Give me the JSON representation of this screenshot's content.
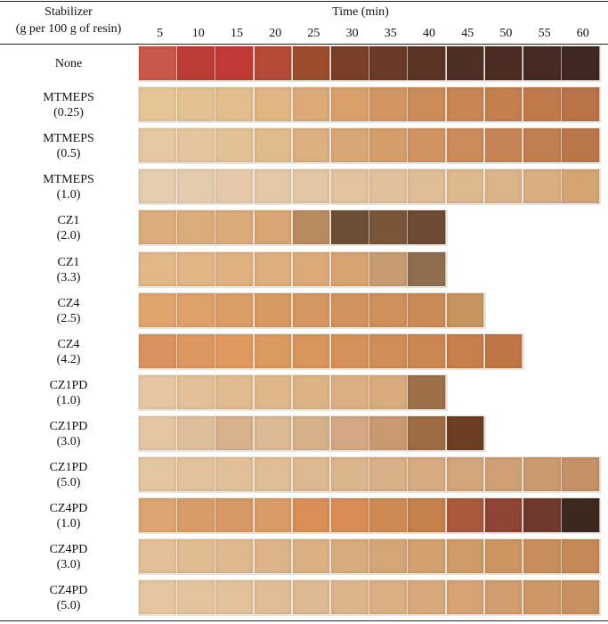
{
  "table": {
    "header": {
      "stabilizer_line1": "Stabilizer",
      "stabilizer_line2": "(g per 100 g of resin)",
      "time_label": "Time (min)",
      "times": [
        "5",
        "10",
        "15",
        "20",
        "25",
        "30",
        "35",
        "40",
        "45",
        "50",
        "55",
        "60"
      ]
    },
    "rows": [
      {
        "name": "None",
        "dose": "",
        "colors": [
          "#c9584a",
          "#bc3d36",
          "#c23a37",
          "#b44a37",
          "#9c4d2e",
          "#7a3f27",
          "#6b3a28",
          "#5c3426",
          "#4e2f25",
          "#4a2c23",
          "#462a23",
          "#3f2822"
        ]
      },
      {
        "name": "MTMEPS",
        "dose": "(0.25)",
        "colors": [
          "#e6c597",
          "#e4c193",
          "#e3bd8c",
          "#e0b682",
          "#dda977",
          "#d9a06c",
          "#d39662",
          "#cc8c58",
          "#c98553",
          "#c57f4d",
          "#c07a4a",
          "#b97347"
        ]
      },
      {
        "name": "MTMEPS",
        "dose": "(0.5)",
        "colors": [
          "#e6c8a2",
          "#e5c59d",
          "#e3c197",
          "#e0bb8d",
          "#dcb081",
          "#d8a776",
          "#d49e6b",
          "#d09463",
          "#cb8b5b",
          "#c68456",
          "#c17e51",
          "#ba764b"
        ]
      },
      {
        "name": "MTMEPS",
        "dose": "(1.0)",
        "colors": [
          "#e6cdb0",
          "#e5cbad",
          "#e5c9aa",
          "#e4c8a7",
          "#e3c6a4",
          "#e2c4a0",
          "#e1c19c",
          "#dfbd96",
          "#ddb98f",
          "#dbb48a",
          "#d9ae82",
          "#d4a573"
        ]
      },
      {
        "name": "CZ1",
        "dose": "(2.0)",
        "colors": [
          "#ddae7d",
          "#dcad7c",
          "#dbab7a",
          "#d8a675",
          "#b98b60",
          "#6e4e35",
          "#7b5538",
          "#6f4b33"
        ]
      },
      {
        "name": "CZ1",
        "dose": "(3.3)",
        "colors": [
          "#e3b888",
          "#e2b585",
          "#e0b282",
          "#deaf7e",
          "#dcaa79",
          "#d7a471",
          "#c79c73",
          "#8f6e50"
        ]
      },
      {
        "name": "CZ4",
        "dose": "(2.5)",
        "colors": [
          "#dfa56d",
          "#dea16a",
          "#dc9e67",
          "#d89a63",
          "#d59761",
          "#d2945e",
          "#cf905b",
          "#cb8b57",
          "#c7955f"
        ]
      },
      {
        "name": "CZ4",
        "dose": "(4.2)",
        "colors": [
          "#da9360",
          "#dd9761",
          "#e09a5f",
          "#db9a60",
          "#d8965d",
          "#d4925a",
          "#d08d57",
          "#cb8752",
          "#c77f4b",
          "#bf7646"
        ]
      },
      {
        "name": "CZ1PD",
        "dose": "(1.0)",
        "colors": [
          "#e6c7a2",
          "#e3c098",
          "#e1bb90",
          "#dfb78b",
          "#ddb386",
          "#dcb084",
          "#d9ab7e",
          "#9d7049"
        ]
      },
      {
        "name": "CZ1PD",
        "dose": "(3.0)",
        "colors": [
          "#e4c6a3",
          "#dfbf9b",
          "#d8b18d",
          "#dcba94",
          "#d8b18b",
          "#d3a882",
          "#c99a71",
          "#9e6c45",
          "#6c3f24"
        ]
      },
      {
        "name": "CZ1PD",
        "dose": "(5.0)",
        "colors": [
          "#e4c6a0",
          "#e2c39c",
          "#e1c099",
          "#dfbd95",
          "#ddb991",
          "#dbb58c",
          "#d9b087",
          "#d6ab81",
          "#d3a67b",
          "#cfa075",
          "#cb9a6f",
          "#c59268"
        ]
      },
      {
        "name": "CZ4PD",
        "dose": "(1.0)",
        "colors": [
          "#dca572",
          "#d89c69",
          "#d79966",
          "#d99c66",
          "#d98f56",
          "#d88d55",
          "#cf8a53",
          "#c5804c",
          "#a95a3c",
          "#8f4434",
          "#6f3a2d",
          "#3d2820"
        ]
      },
      {
        "name": "CZ4PD",
        "dose": "(3.0)",
        "colors": [
          "#e3bf97",
          "#e1bc93",
          "#dfb88e",
          "#ddb489",
          "#dbb084",
          "#d8ab7d",
          "#d5a676",
          "#d2a16f",
          "#cf9b68",
          "#cc9562",
          "#c88f5c",
          "#c48957"
        ]
      },
      {
        "name": "CZ4PD",
        "dose": "(5.0)",
        "colors": [
          "#e5c6a0",
          "#e4c49d",
          "#e3c19a",
          "#e1bd96",
          "#dfb991",
          "#ddb48b",
          "#dbaf84",
          "#d8a97d",
          "#d5a376",
          "#d29d6f",
          "#ce9768",
          "#c99161"
        ]
      }
    ]
  }
}
